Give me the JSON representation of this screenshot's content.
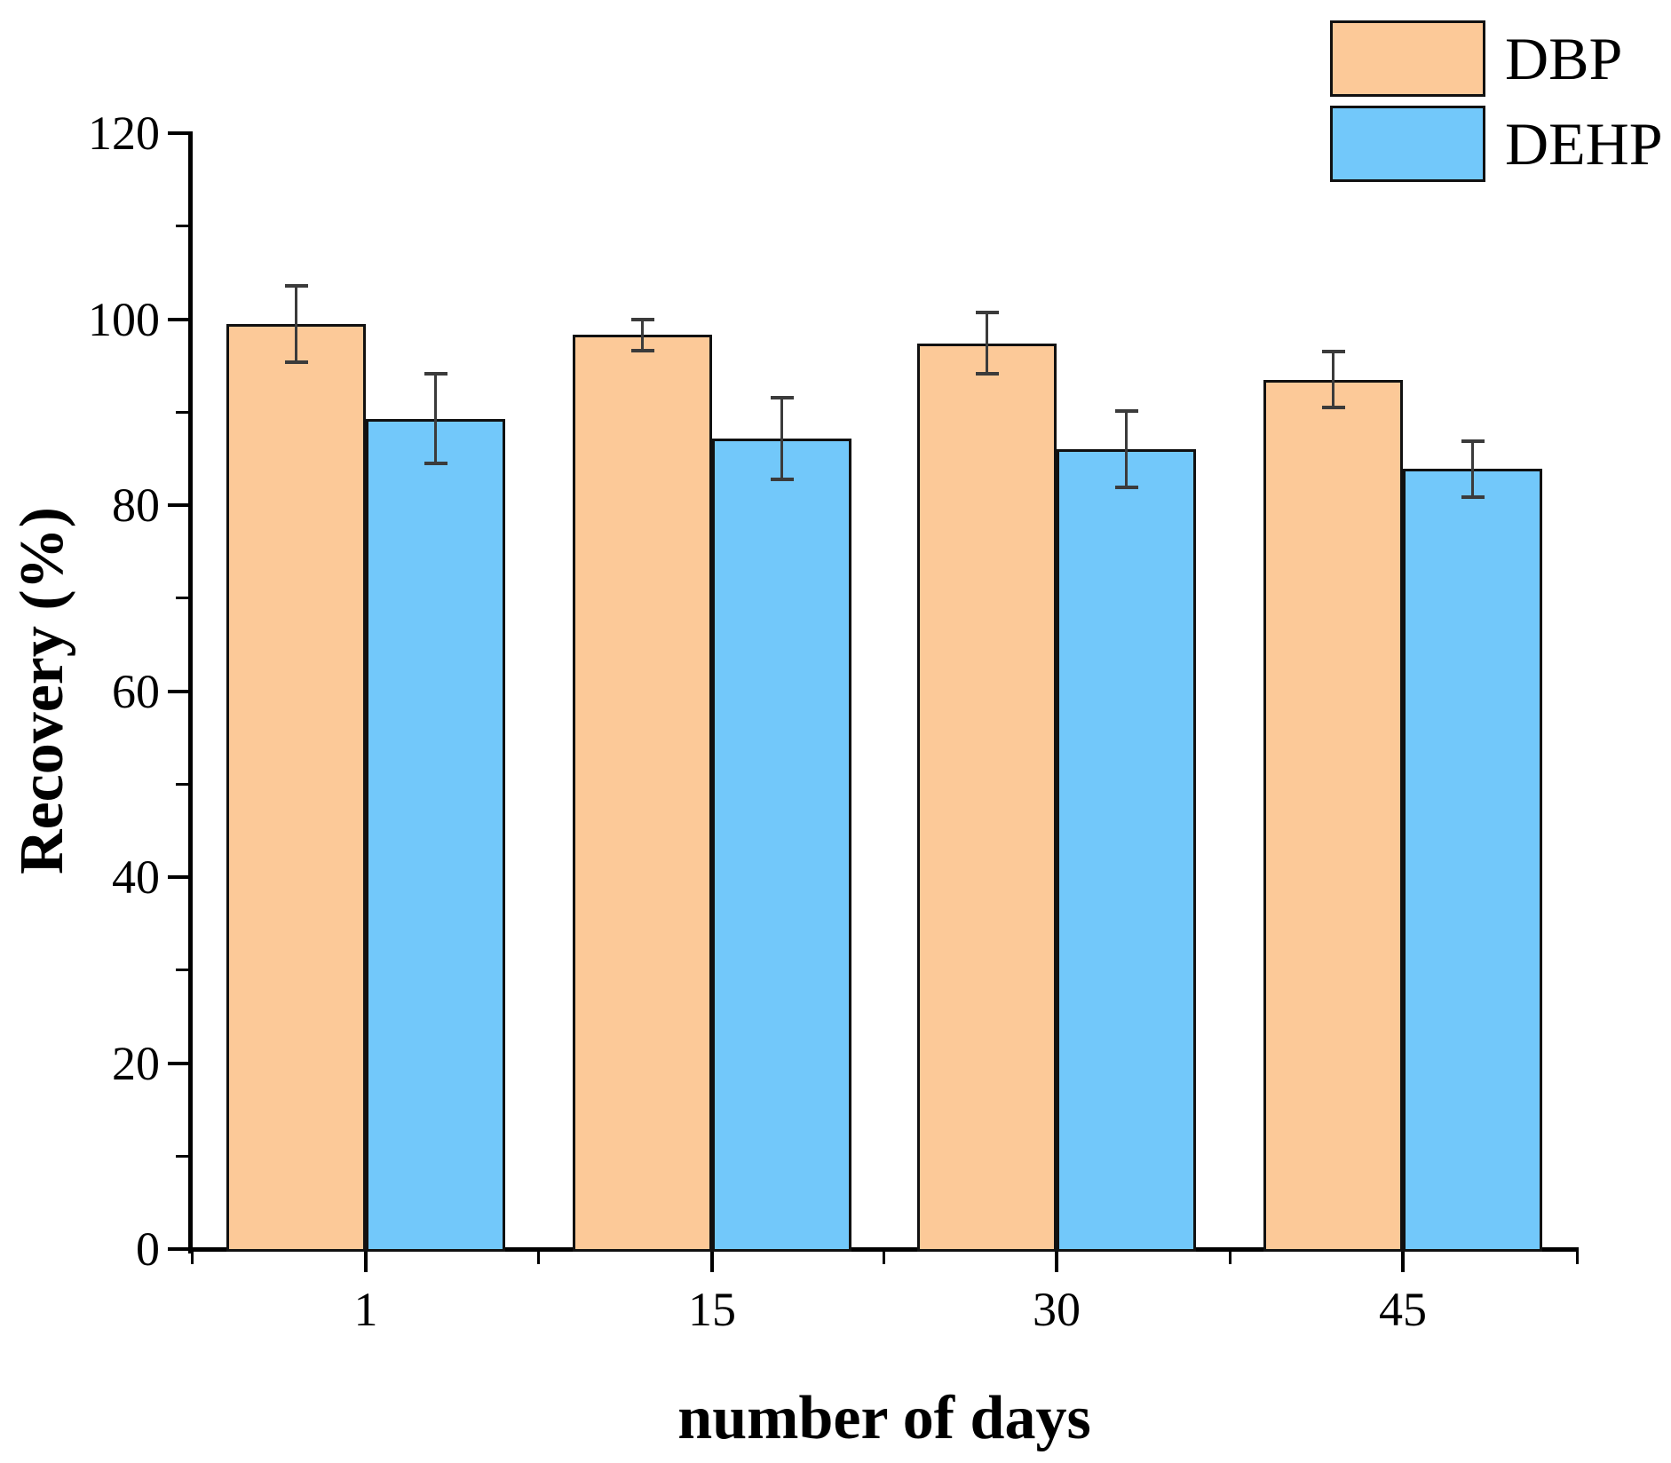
{
  "chart_data": {
    "type": "bar",
    "title": "",
    "xlabel": "number of days",
    "ylabel": "Recovery (%)",
    "categories": [
      "1",
      "15",
      "30",
      "45"
    ],
    "series": [
      {
        "name": "DBP",
        "color": "#FCC998",
        "values": [
          99.5,
          98.3,
          97.4,
          93.5
        ],
        "errors": [
          4.1,
          1.7,
          3.3,
          3.0
        ]
      },
      {
        "name": "DEHP",
        "color": "#72C8FA",
        "values": [
          89.3,
          87.2,
          86.0,
          83.9
        ],
        "errors": [
          4.8,
          4.4,
          4.1,
          3.0
        ]
      }
    ],
    "ylim": [
      0,
      120
    ],
    "ytick_major_step": 20,
    "ytick_minor_step": 10,
    "grid": false,
    "legend_position": "top-right",
    "legend_entries": [
      "DBP",
      "DEHP"
    ]
  },
  "styles": {
    "bar_border_color": "#111111",
    "error_bar_color": "#3b3b3b",
    "axis_color": "#000000",
    "text_color": "#000000",
    "background_color": "#ffffff"
  }
}
